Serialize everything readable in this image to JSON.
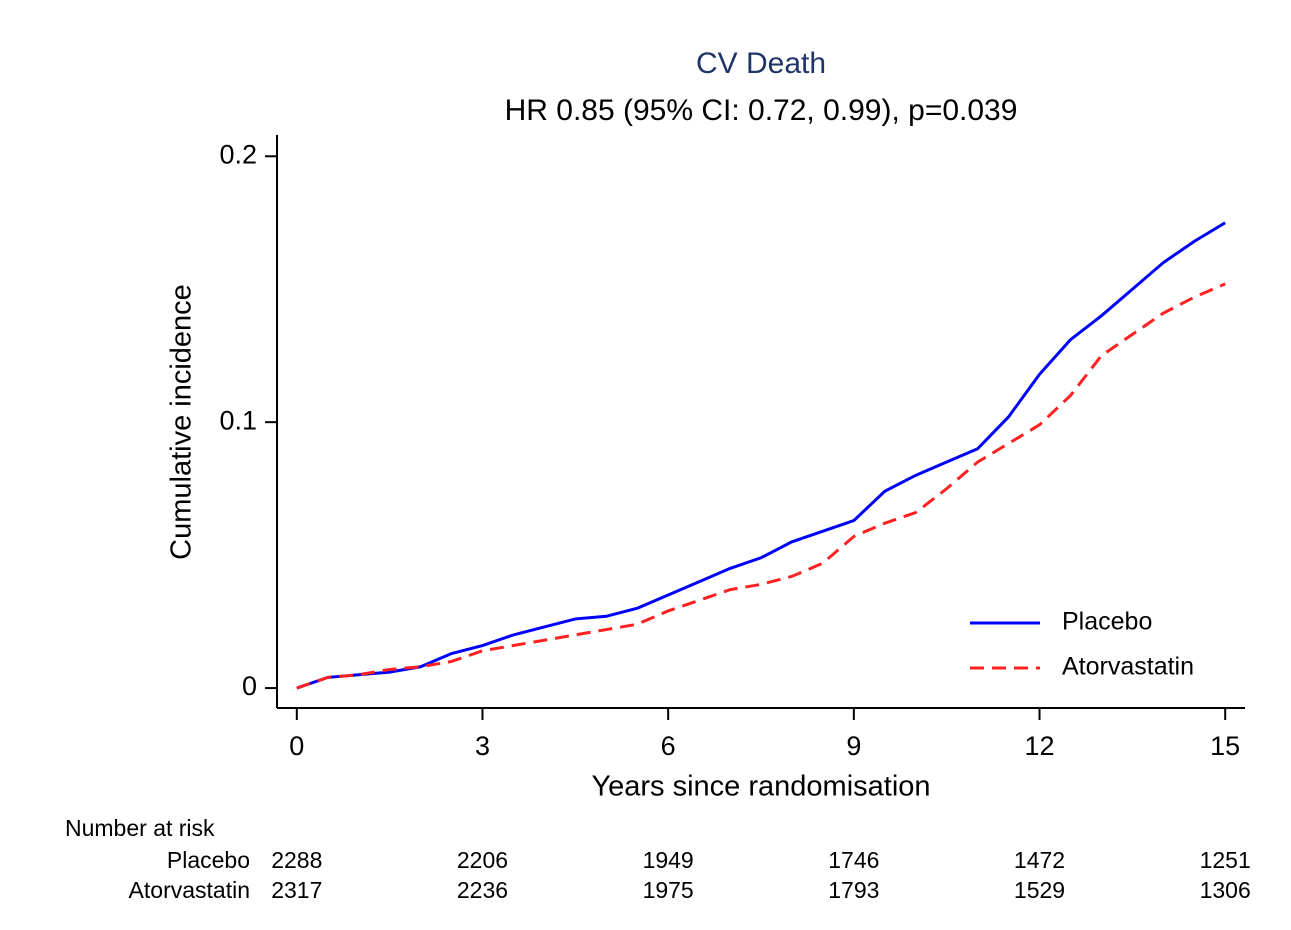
{
  "chart_data": {
    "type": "line",
    "title": "CV Death",
    "subtitle": "HR 0.85 (95% CI: 0.72, 0.99), p=0.039",
    "x_label": "Years since randomisation",
    "y_label": "Cumulative incidence",
    "x": [
      0,
      0.5,
      1,
      1.5,
      2,
      2.5,
      3,
      3.5,
      4,
      4.5,
      5,
      5.5,
      6,
      6.5,
      7,
      7.5,
      8,
      8.5,
      9,
      9.5,
      10,
      10.5,
      11,
      11.5,
      12,
      12.5,
      13,
      13.5,
      14,
      14.5,
      15
    ],
    "series": [
      {
        "name": "Placebo",
        "color": "#0000ff",
        "dash": "solid",
        "values": [
          0,
          0.004,
          0.005,
          0.006,
          0.008,
          0.013,
          0.016,
          0.02,
          0.023,
          0.026,
          0.027,
          0.03,
          0.035,
          0.04,
          0.045,
          0.049,
          0.055,
          0.059,
          0.063,
          0.074,
          0.08,
          0.085,
          0.09,
          0.102,
          0.118,
          0.131,
          0.14,
          0.15,
          0.16,
          0.168,
          0.175
        ]
      },
      {
        "name": "Atorvastatin",
        "color": "#ff2020",
        "dash": "dashed",
        "values": [
          0,
          0.004,
          0.005,
          0.007,
          0.008,
          0.01,
          0.014,
          0.016,
          0.018,
          0.02,
          0.022,
          0.024,
          0.029,
          0.033,
          0.037,
          0.039,
          0.042,
          0.047,
          0.057,
          0.062,
          0.066,
          0.075,
          0.085,
          0.092,
          0.099,
          0.11,
          0.125,
          0.133,
          0.141,
          0.147,
          0.152
        ]
      }
    ],
    "xlim": [
      -0.32,
      15.32
    ],
    "ylim": [
      -0.0075,
      0.208
    ],
    "xticks": [
      0,
      3,
      6,
      9,
      12,
      15
    ],
    "yticks": [
      0,
      0.1,
      0.2
    ],
    "legend": "lower right",
    "risk_table": {
      "title": "Number at risk",
      "rows": [
        {
          "label": "Placebo",
          "values": [
            2288,
            2206,
            1949,
            1746,
            1472,
            1251
          ]
        },
        {
          "label": "Atorvastatin",
          "values": [
            2317,
            2236,
            1975,
            1793,
            1529,
            1306
          ]
        }
      ]
    }
  }
}
